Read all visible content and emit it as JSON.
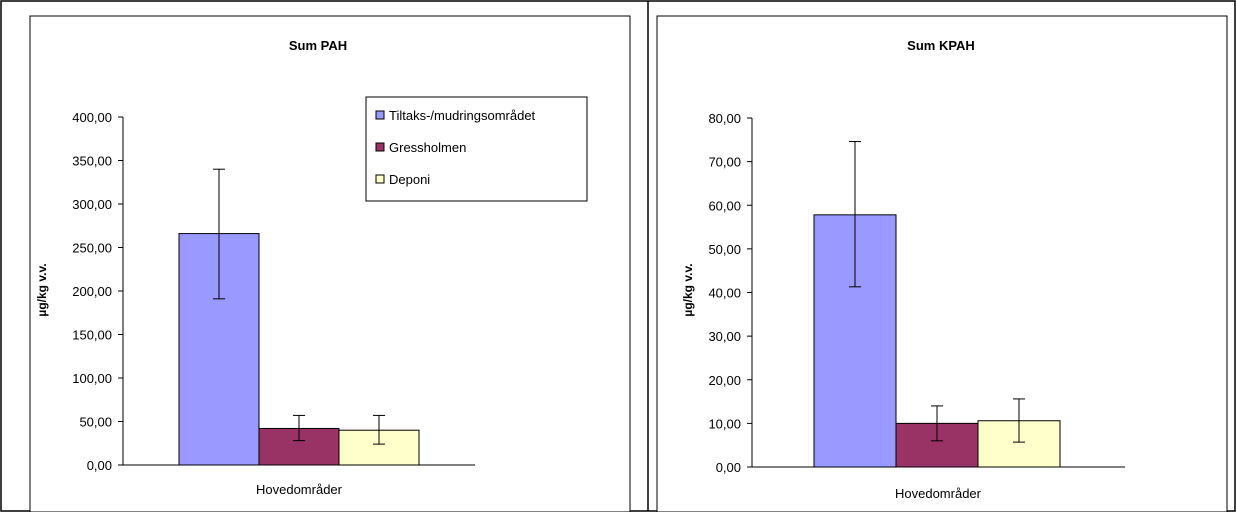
{
  "chart_data": [
    {
      "type": "bar",
      "title": "Sum PAH",
      "xlabel": "Hovedområder",
      "ylabel": "µg/kg v.v.",
      "ylim": [
        0,
        400
      ],
      "yticks": [
        "0,00",
        "50,00",
        "100,00",
        "150,00",
        "200,00",
        "250,00",
        "300,00",
        "350,00",
        "400,00"
      ],
      "grid": false,
      "legend_position": "top-right",
      "series": [
        {
          "name": "Tiltaks-/mudringsområdet",
          "value": 266,
          "err_low": 191,
          "err_high": 340,
          "color": "#9999ff"
        },
        {
          "name": "Gressholmen",
          "value": 42,
          "err_low": 28,
          "err_high": 57,
          "color": "#993366"
        },
        {
          "name": "Deponi",
          "value": 40,
          "err_low": 24,
          "err_high": 57,
          "color": "#ffffcc"
        }
      ]
    },
    {
      "type": "bar",
      "title": "Sum KPAH",
      "xlabel": "Hovedområder",
      "ylabel": "µg/kg v.v.",
      "ylim": [
        0,
        80
      ],
      "yticks": [
        "0,00",
        "10,00",
        "20,00",
        "30,00",
        "40,00",
        "50,00",
        "60,00",
        "70,00",
        "80,00"
      ],
      "grid": false,
      "series": [
        {
          "value": 57.8,
          "err_low": 41.3,
          "err_high": 74.6,
          "color": "#9999ff"
        },
        {
          "value": 10,
          "err_low": 6,
          "err_high": 14,
          "color": "#993366"
        },
        {
          "value": 10.6,
          "err_low": 5.7,
          "err_high": 15.6,
          "color": "#ffffcc"
        }
      ]
    }
  ]
}
